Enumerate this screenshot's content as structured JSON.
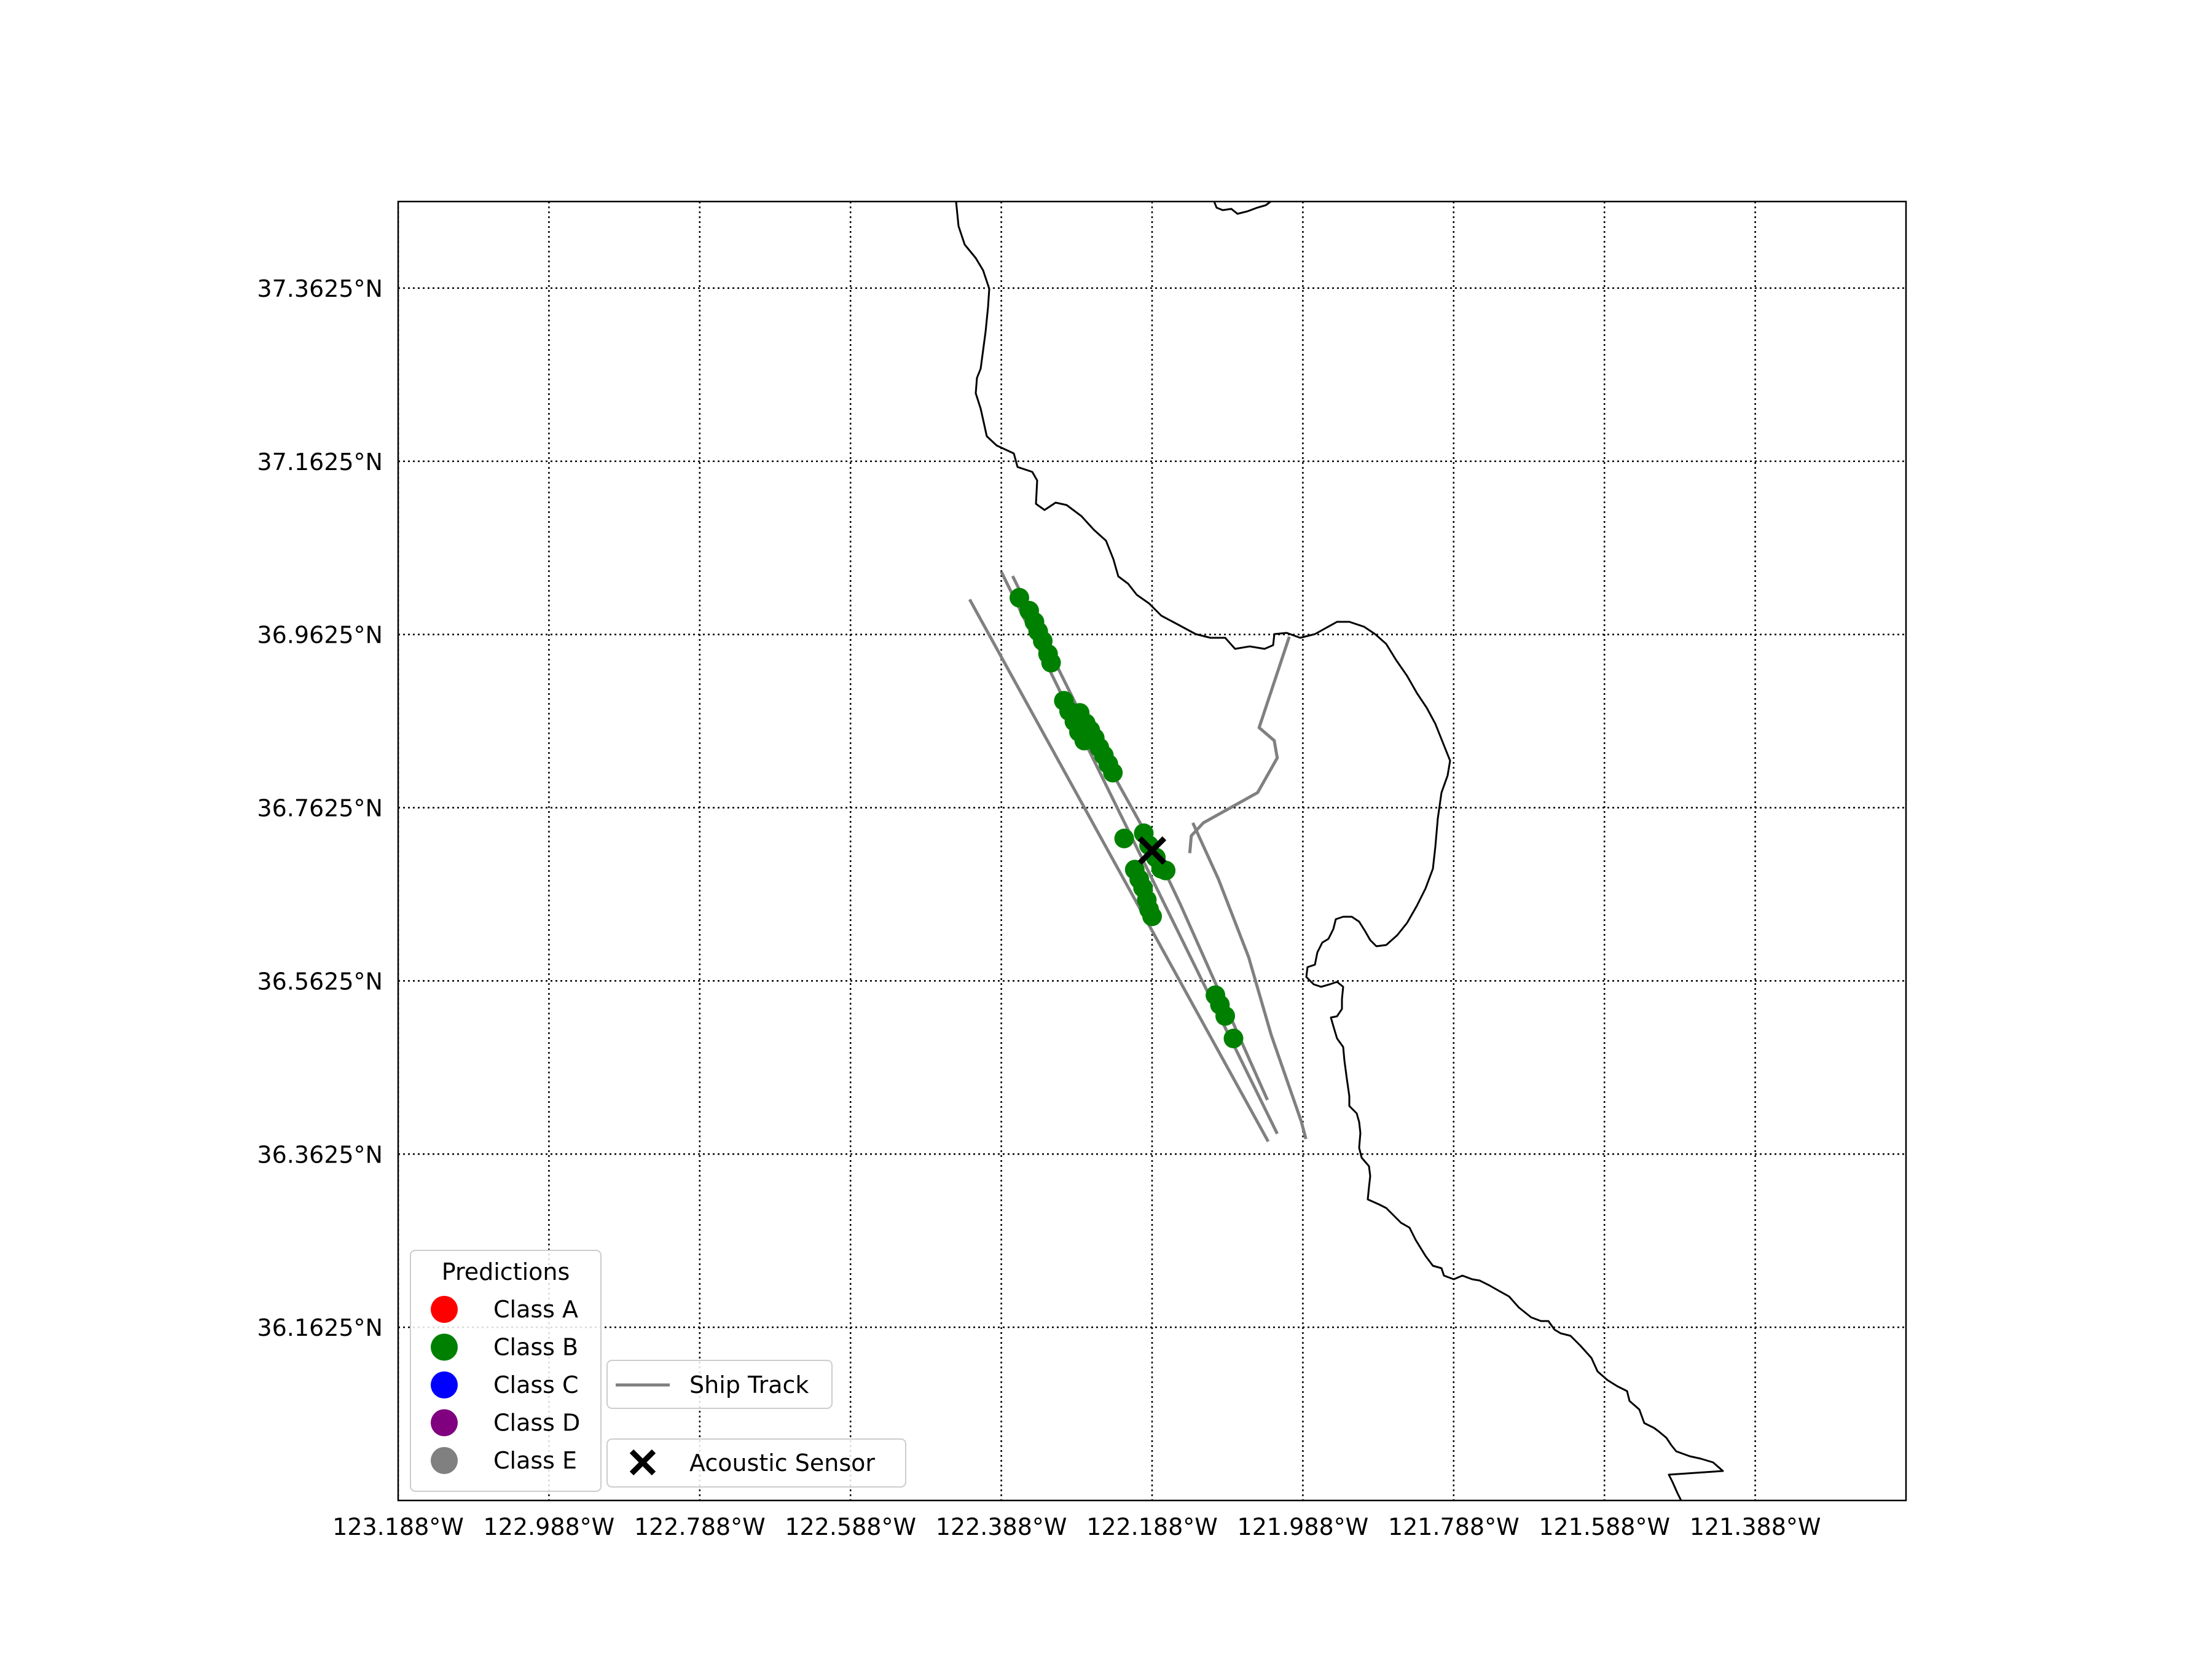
{
  "map": {
    "x_ticks": [
      "123.188°W",
      "122.988°W",
      "122.788°W",
      "122.588°W",
      "122.388°W",
      "122.188°W",
      "121.988°W",
      "121.788°W",
      "121.588°W",
      "121.388°W"
    ],
    "x_tick_values": [
      -123.188,
      -122.988,
      -122.788,
      -122.588,
      -122.388,
      -122.188,
      -121.988,
      -121.788,
      -121.588,
      -121.388
    ],
    "y_ticks": [
      "37.3625°N",
      "37.1625°N",
      "36.9625°N",
      "36.7625°N",
      "36.5625°N",
      "36.3625°N",
      "36.1625°N"
    ],
    "y_tick_values": [
      37.3625,
      37.1625,
      36.9625,
      36.7625,
      36.5625,
      36.3625,
      36.1625
    ],
    "xlim": [
      -123.188,
      -121.188
    ],
    "ylim": [
      35.9625,
      37.4625
    ],
    "grid": "dotted",
    "coastline_color": "#000000"
  },
  "legend_predictions": {
    "title": "Predictions",
    "placement": "lower-left",
    "entries": [
      {
        "label": "Class A",
        "color": "#ff0000"
      },
      {
        "label": "Class B",
        "color": "#008000"
      },
      {
        "label": "Class C",
        "color": "#0000ff"
      },
      {
        "label": "Class D",
        "color": "#800080"
      },
      {
        "label": "Class E",
        "color": "#808080"
      }
    ]
  },
  "legend_track": {
    "label": "Ship Track",
    "color": "#808080"
  },
  "legend_sensor": {
    "label": "Acoustic Sensor",
    "color": "#000000"
  },
  "chart_data": {
    "type": "scatter",
    "title": "",
    "xlabel": "",
    "ylabel": "",
    "xlim": [
      -123.188,
      -121.188
    ],
    "ylim": [
      35.9625,
      37.4625
    ],
    "grid": true,
    "legend": "lower-left",
    "acoustic_sensor": {
      "lon": -122.188,
      "lat": 36.713
    },
    "ship_tracks": [
      {
        "points": [
          [
            -122.43,
            37.003
          ],
          [
            -122.034,
            36.377
          ]
        ]
      },
      {
        "points": [
          [
            -122.388,
            37.035
          ],
          [
            -122.022,
            36.386
          ]
        ]
      },
      {
        "points": [
          [
            -122.373,
            37.03
          ],
          [
            -122.271,
            36.85
          ],
          [
            -122.188,
            36.72
          ],
          [
            -122.15,
            36.65
          ],
          [
            -122.035,
            36.425
          ]
        ]
      },
      {
        "points": [
          [
            -122.006,
            36.96
          ],
          [
            -122.046,
            36.855
          ],
          [
            -122.026,
            36.84
          ],
          [
            -122.022,
            36.82
          ],
          [
            -122.048,
            36.78
          ],
          [
            -122.12,
            36.745
          ],
          [
            -122.136,
            36.73
          ],
          [
            -122.138,
            36.71
          ]
        ]
      },
      {
        "points": [
          [
            -122.134,
            36.745
          ],
          [
            -122.1,
            36.68
          ],
          [
            -122.06,
            36.59
          ],
          [
            -122.03,
            36.5
          ],
          [
            -121.99,
            36.4
          ],
          [
            -121.984,
            36.38
          ]
        ]
      }
    ],
    "series": [
      {
        "name": "Class B",
        "color": "#008000",
        "points": [
          [
            -122.364,
            37.005
          ],
          [
            -122.351,
            36.99
          ],
          [
            -122.344,
            36.977
          ],
          [
            -122.339,
            36.966
          ],
          [
            -122.333,
            36.955
          ],
          [
            -122.326,
            36.94
          ],
          [
            -122.322,
            36.93
          ],
          [
            -122.305,
            36.886
          ],
          [
            -122.298,
            36.874
          ],
          [
            -122.291,
            36.862
          ],
          [
            -122.285,
            36.85
          ],
          [
            -122.278,
            36.84
          ],
          [
            -122.284,
            36.872
          ],
          [
            -122.276,
            36.86
          ],
          [
            -122.27,
            36.852
          ],
          [
            -122.264,
            36.843
          ],
          [
            -122.258,
            36.832
          ],
          [
            -122.252,
            36.823
          ],
          [
            -122.246,
            36.813
          ],
          [
            -122.24,
            36.803
          ],
          [
            -122.225,
            36.727
          ],
          [
            -122.199,
            36.733
          ],
          [
            -122.192,
            36.719
          ],
          [
            -122.183,
            36.705
          ],
          [
            -122.176,
            36.692
          ],
          [
            -122.17,
            36.69
          ],
          [
            -122.211,
            36.691
          ],
          [
            -122.205,
            36.68
          ],
          [
            -122.2,
            36.67
          ],
          [
            -122.195,
            36.656
          ],
          [
            -122.192,
            36.645
          ],
          [
            -122.188,
            36.637
          ],
          [
            -122.104,
            36.546
          ],
          [
            -122.098,
            36.535
          ],
          [
            -122.091,
            36.522
          ],
          [
            -122.08,
            36.496
          ]
        ]
      },
      {
        "name": "Class A",
        "color": "#ff0000",
        "points": []
      },
      {
        "name": "Class C",
        "color": "#0000ff",
        "points": []
      },
      {
        "name": "Class D",
        "color": "#800080",
        "points": []
      },
      {
        "name": "Class E",
        "color": "#808080",
        "points": []
      }
    ]
  }
}
